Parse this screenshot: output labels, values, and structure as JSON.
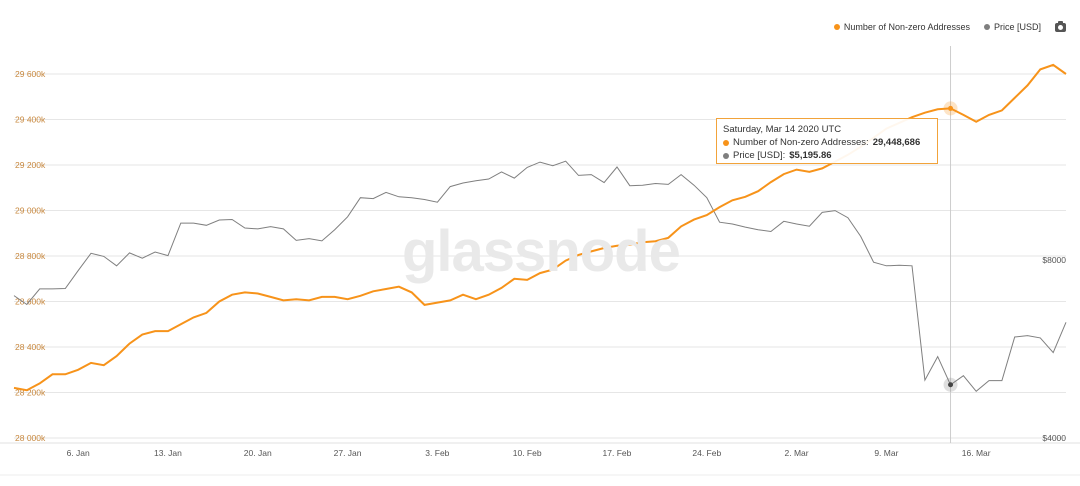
{
  "legend": {
    "items": [
      {
        "label": "Number of Non-zero Addresses",
        "color": "#f7931a"
      },
      {
        "label": "Price [USD]",
        "color": "#7f7f7f"
      }
    ],
    "export_icon": "camera-icon"
  },
  "watermark": "glassnode",
  "tooltip": {
    "date": "Saturday, Mar 14 2020 UTC",
    "series1_label": "Number of Non-zero Addresses:",
    "series1_value": "29,448,686",
    "series2_label": "Price [USD]:",
    "series2_value": "$5,195.86"
  },
  "colors": {
    "addresses": "#f7931a",
    "price": "#7f7f7f",
    "grid": "#e6e6e6"
  },
  "chart_data": {
    "type": "line",
    "title": "",
    "x_start": "2020-01-01",
    "x": [
      "2020-01-01",
      "2020-01-02",
      "2020-01-03",
      "2020-01-04",
      "2020-01-05",
      "2020-01-06",
      "2020-01-07",
      "2020-01-08",
      "2020-01-09",
      "2020-01-10",
      "2020-01-11",
      "2020-01-12",
      "2020-01-13",
      "2020-01-14",
      "2020-01-15",
      "2020-01-16",
      "2020-01-17",
      "2020-01-18",
      "2020-01-19",
      "2020-01-20",
      "2020-01-21",
      "2020-01-22",
      "2020-01-23",
      "2020-01-24",
      "2020-01-25",
      "2020-01-26",
      "2020-01-27",
      "2020-01-28",
      "2020-01-29",
      "2020-01-30",
      "2020-01-31",
      "2020-02-01",
      "2020-02-02",
      "2020-02-03",
      "2020-02-04",
      "2020-02-05",
      "2020-02-06",
      "2020-02-07",
      "2020-02-08",
      "2020-02-09",
      "2020-02-10",
      "2020-02-11",
      "2020-02-12",
      "2020-02-13",
      "2020-02-14",
      "2020-02-15",
      "2020-02-16",
      "2020-02-17",
      "2020-02-18",
      "2020-02-19",
      "2020-02-20",
      "2020-02-21",
      "2020-02-22",
      "2020-02-23",
      "2020-02-24",
      "2020-02-25",
      "2020-02-26",
      "2020-02-27",
      "2020-02-28",
      "2020-02-29",
      "2020-03-01",
      "2020-03-02",
      "2020-03-03",
      "2020-03-04",
      "2020-03-05",
      "2020-03-06",
      "2020-03-07",
      "2020-03-08",
      "2020-03-09",
      "2020-03-10",
      "2020-03-11",
      "2020-03-12",
      "2020-03-13",
      "2020-03-14",
      "2020-03-15",
      "2020-03-16",
      "2020-03-17",
      "2020-03-18",
      "2020-03-19",
      "2020-03-20",
      "2020-03-21",
      "2020-03-22",
      "2020-03-23"
    ],
    "x_ticks": [
      {
        "label": "6. Jan",
        "date": "2020-01-06"
      },
      {
        "label": "13. Jan",
        "date": "2020-01-13"
      },
      {
        "label": "20. Jan",
        "date": "2020-01-20"
      },
      {
        "label": "27. Jan",
        "date": "2020-01-27"
      },
      {
        "label": "3. Feb",
        "date": "2020-02-03"
      },
      {
        "label": "10. Feb",
        "date": "2020-02-10"
      },
      {
        "label": "17. Feb",
        "date": "2020-02-17"
      },
      {
        "label": "24. Feb",
        "date": "2020-02-24"
      },
      {
        "label": "2. Mar",
        "date": "2020-03-02"
      },
      {
        "label": "9. Mar",
        "date": "2020-03-09"
      },
      {
        "label": "16. Mar",
        "date": "2020-03-16"
      }
    ],
    "y_left": {
      "ylim": [
        28000000,
        29800000
      ],
      "ticks": [
        28000000,
        28200000,
        28400000,
        28600000,
        28800000,
        29000000,
        29200000,
        29400000,
        29600000
      ],
      "tick_labels": [
        "28 000k",
        "28 200k",
        "28 400k",
        "28 600k",
        "28 800k",
        "29 000k",
        "29 200k",
        "29 400k",
        "29 600k"
      ]
    },
    "y_right": {
      "ylim": [
        4000,
        12000
      ],
      "ticks": [
        4000,
        8000
      ],
      "tick_labels": [
        "$4000",
        "$8000"
      ]
    },
    "series": [
      {
        "name": "Number of Non-zero Addresses",
        "axis": "left",
        "values": [
          28220000,
          28210000,
          28240000,
          28280000,
          28280000,
          28300000,
          28330000,
          28320000,
          28360000,
          28415000,
          28455000,
          28470000,
          28470000,
          28500000,
          28530000,
          28550000,
          28600000,
          28630000,
          28640000,
          28635000,
          28620000,
          28605000,
          28610000,
          28605000,
          28620000,
          28620000,
          28610000,
          28625000,
          28645000,
          28655000,
          28665000,
          28640000,
          28585000,
          28595000,
          28605000,
          28630000,
          28610000,
          28630000,
          28660000,
          28700000,
          28695000,
          28725000,
          28740000,
          28780000,
          28805000,
          28820000,
          28835000,
          28845000,
          28850000,
          28860000,
          28865000,
          28880000,
          28930000,
          28960000,
          28980000,
          29015000,
          29045000,
          29060000,
          29085000,
          29125000,
          29160000,
          29180000,
          29170000,
          29185000,
          29215000,
          29245000,
          29280000,
          29320000,
          29360000,
          29385000,
          29410000,
          29430000,
          29445000,
          29448686,
          29420000,
          29390000,
          29420000,
          29440000,
          29495000,
          29550000,
          29620000,
          29640000,
          29600000
        ]
      },
      {
        "name": "Price [USD]",
        "axis": "right",
        "values": [
          7200,
          7000,
          7350,
          7350,
          7360,
          7760,
          8150,
          8080,
          7870,
          8160,
          8040,
          8180,
          8100,
          8830,
          8830,
          8780,
          8900,
          8910,
          8720,
          8700,
          8750,
          8700,
          8440,
          8480,
          8430,
          8680,
          8970,
          9400,
          9380,
          9520,
          9420,
          9400,
          9360,
          9300,
          9650,
          9730,
          9780,
          9820,
          9980,
          9840,
          10080,
          10200,
          10120,
          10220,
          9900,
          9920,
          9740,
          10090,
          9670,
          9680,
          9720,
          9700,
          9920,
          9680,
          9400,
          8850,
          8810,
          8740,
          8680,
          8640,
          8870,
          8810,
          8760,
          9070,
          9110,
          8950,
          8530,
          7950,
          7870,
          7880,
          7870,
          5300,
          5830,
          5195.86,
          5400,
          5050,
          5290,
          5290,
          6270,
          6300,
          6250,
          5920,
          6600
        ]
      }
    ],
    "hover_date": "2020-03-14",
    "legend_position": "top-right",
    "grid": true
  }
}
